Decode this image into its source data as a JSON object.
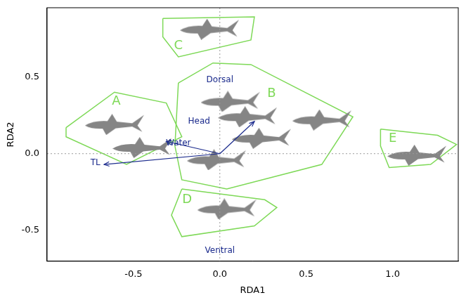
{
  "chart_data": {
    "type": "scatter",
    "x_label": "RDA1",
    "y_label": "RDA2",
    "xlim": [
      -1.0,
      1.38
    ],
    "ylim": [
      -0.7,
      0.95
    ],
    "xticks": [
      -0.5,
      {
        "value": 0,
        "label": "0.0"
      },
      0.5,
      {
        "value": 1,
        "label": "1.0"
      }
    ],
    "yticks": [
      -0.5,
      {
        "value": 0,
        "label": "0.0"
      },
      0.5
    ],
    "grid": false,
    "groups": [
      {
        "name": "A",
        "color": "#7ed957",
        "label_at": [
          -0.6,
          0.34
        ],
        "points": [
          [
            -0.61,
            0.19
          ],
          [
            -0.45,
            0.04
          ]
        ],
        "hull": [
          [
            -0.89,
            0.17
          ],
          [
            -0.61,
            0.4
          ],
          [
            -0.31,
            0.33
          ],
          [
            -0.22,
            0.11
          ],
          [
            -0.54,
            -0.07
          ],
          [
            -0.89,
            0.11
          ]
        ]
      },
      {
        "name": "B",
        "color": "#7ed957",
        "label_at": [
          0.3,
          0.39
        ],
        "points": [
          [
            0.06,
            0.34
          ],
          [
            0.16,
            0.24
          ],
          [
            0.59,
            0.22
          ],
          [
            0.24,
            0.1
          ],
          [
            -0.02,
            -0.04
          ]
        ],
        "hull": [
          [
            -0.24,
            0.46
          ],
          [
            -0.04,
            0.59
          ],
          [
            0.18,
            0.58
          ],
          [
            0.77,
            0.24
          ],
          [
            0.59,
            -0.07
          ],
          [
            0.04,
            -0.23
          ],
          [
            -0.22,
            -0.17
          ],
          [
            -0.26,
            0.05
          ]
        ]
      },
      {
        "name": "C",
        "color": "#7ed957",
        "label_at": [
          -0.24,
          0.7
        ],
        "points": [
          [
            -0.06,
            0.81
          ]
        ],
        "hull": [
          [
            -0.33,
            0.88
          ],
          [
            0.2,
            0.89
          ],
          [
            0.18,
            0.74
          ],
          [
            -0.24,
            0.63
          ],
          [
            -0.33,
            0.76
          ]
        ]
      },
      {
        "name": "D",
        "color": "#7ed957",
        "label_at": [
          -0.19,
          -0.3
        ],
        "points": [
          [
            0.04,
            -0.36
          ]
        ],
        "hull": [
          [
            -0.22,
            -0.23
          ],
          [
            0.26,
            -0.3
          ],
          [
            0.33,
            -0.35
          ],
          [
            0.2,
            -0.47
          ],
          [
            -0.22,
            -0.54
          ],
          [
            -0.28,
            -0.4
          ]
        ]
      },
      {
        "name": "E",
        "color": "#7ed957",
        "label_at": [
          1.0,
          0.1
        ],
        "points": [
          [
            1.14,
            -0.01
          ]
        ],
        "hull": [
          [
            0.93,
            0.16
          ],
          [
            1.26,
            0.12
          ],
          [
            1.37,
            0.06
          ],
          [
            1.22,
            -0.07
          ],
          [
            0.98,
            -0.09
          ],
          [
            0.93,
            0.05
          ]
        ]
      }
    ],
    "variables": [
      {
        "name": "TL",
        "color": "#1a2a8c",
        "from": [
          0,
          0
        ],
        "to": [
          -0.67,
          -0.07
        ],
        "label_at": [
          -0.72,
          -0.06
        ]
      },
      {
        "name": "Water",
        "color": "#1a2a8c",
        "from": [
          0,
          0
        ],
        "to": [
          -0.31,
          0.08
        ],
        "label_at": [
          -0.24,
          0.07
        ]
      },
      {
        "name": "Head",
        "color": "#1a2a8c",
        "from": [
          0,
          0
        ],
        "to": [
          0.2,
          0.21
        ],
        "label_at": [
          -0.12,
          0.21
        ]
      },
      {
        "name": "Dorsal",
        "color": "#1a2a8c",
        "label_at": [
          0.0,
          0.48
        ]
      },
      {
        "name": "Ventral",
        "color": "#1a2a8c",
        "label_at": [
          0.0,
          -0.63
        ]
      }
    ]
  }
}
